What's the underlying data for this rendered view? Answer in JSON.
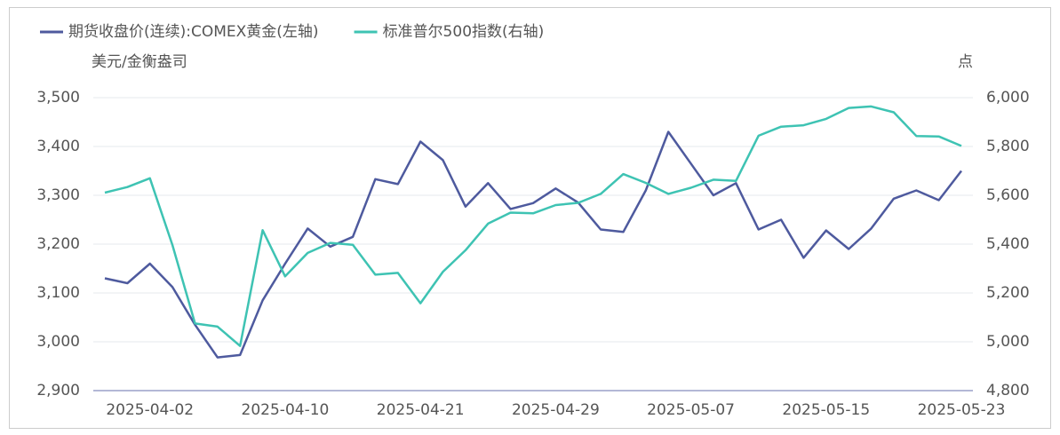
{
  "chart_data": {
    "type": "line",
    "categories": [
      null,
      null,
      "2025-04-02",
      null,
      null,
      null,
      null,
      null,
      "2025-04-10",
      null,
      null,
      null,
      null,
      null,
      "2025-04-21",
      null,
      null,
      null,
      null,
      null,
      "2025-04-29",
      null,
      null,
      null,
      null,
      null,
      "2025-05-07",
      null,
      null,
      null,
      null,
      null,
      "2025-05-15",
      null,
      null,
      null,
      null,
      null,
      "2025-05-23"
    ],
    "series": [
      {
        "name": "期货收盘价(连续):COMEX黄金(左轴)",
        "color": "#4e5a9e",
        "axis": "y",
        "values": [
          3130,
          3120,
          3160,
          3112,
          3035,
          2968,
          2973,
          3085,
          3160,
          3232,
          3195,
          3215,
          3333,
          3323,
          3410,
          3372,
          3277,
          3325,
          3272,
          3284,
          3314,
          3285,
          3230,
          3225,
          3310,
          3430,
          3365,
          3300,
          3325,
          3230,
          3250,
          3172,
          3228,
          3190,
          3232,
          3293,
          3310,
          3290,
          3350
        ]
      },
      {
        "name": "标准普尔500指数(右轴)",
        "color": "#3ec3b3",
        "axis": "y2",
        "values": [
          5611,
          5634,
          5670,
          5396,
          5075,
          5062,
          4983,
          5457,
          5268,
          5364,
          5405,
          5397,
          5275,
          5282,
          5158,
          5287,
          5375,
          5484,
          5529,
          5526,
          5560,
          5569,
          5606,
          5687,
          5651,
          5606,
          5631,
          5664,
          5659,
          5844,
          5881,
          5887,
          5913,
          5958,
          5964,
          5940,
          5843,
          5841,
          5802
        ]
      }
    ],
    "y_label": "美元/金衡盎司",
    "y2_label": "点",
    "ylim": [
      2900,
      3500
    ],
    "yticks": [
      {
        "value": 2900,
        "label": "2,900"
      },
      {
        "value": 3000,
        "label": "3,000"
      },
      {
        "value": 3100,
        "label": "3,100"
      },
      {
        "value": 3200,
        "label": "3,200"
      },
      {
        "value": 3300,
        "label": "3,300"
      },
      {
        "value": 3400,
        "label": "3,400"
      },
      {
        "value": 3500,
        "label": "3,500"
      }
    ],
    "y2lim": [
      4800,
      6000
    ],
    "y2ticks": [
      {
        "value": 4800,
        "label": "4,800"
      },
      {
        "value": 5000,
        "label": "5,000"
      },
      {
        "value": 5200,
        "label": "5,200"
      },
      {
        "value": 5400,
        "label": "5,400"
      },
      {
        "value": 5600,
        "label": "5,600"
      },
      {
        "value": 5800,
        "label": "5,800"
      },
      {
        "value": 6000,
        "label": "6,000"
      }
    ],
    "grid": true,
    "legend": "top-left"
  }
}
